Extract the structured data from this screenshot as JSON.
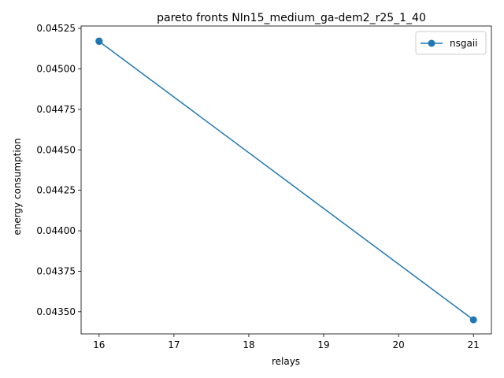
{
  "chart_data": {
    "type": "line",
    "title": "pareto fronts NIn15_medium_ga-dem2_r25_1_40",
    "xlabel": "relays",
    "ylabel": "energy consumption",
    "xlim": [
      15.76,
      21.24
    ],
    "ylim": [
      0.043363,
      0.045265
    ],
    "xticks": [
      16,
      17,
      18,
      19,
      20,
      21
    ],
    "yticks": [
      0.0435,
      0.04375,
      0.044,
      0.04425,
      0.0445,
      0.04475,
      0.045,
      0.04525
    ],
    "xtick_labels": [
      "16",
      "17",
      "18",
      "19",
      "20",
      "21"
    ],
    "ytick_labels": [
      "0.04350",
      "0.04375",
      "0.04400",
      "0.04425",
      "0.04450",
      "0.04475",
      "0.04500",
      "0.04525"
    ],
    "grid": false,
    "legend_position": "top-right",
    "series": [
      {
        "name": "nsgaii",
        "color": "#1f77b4",
        "marker": "circle",
        "x": [
          16,
          16,
          16,
          21
        ],
        "y": [
          0.045172,
          0.045171,
          0.04517,
          0.04345
        ]
      }
    ]
  }
}
